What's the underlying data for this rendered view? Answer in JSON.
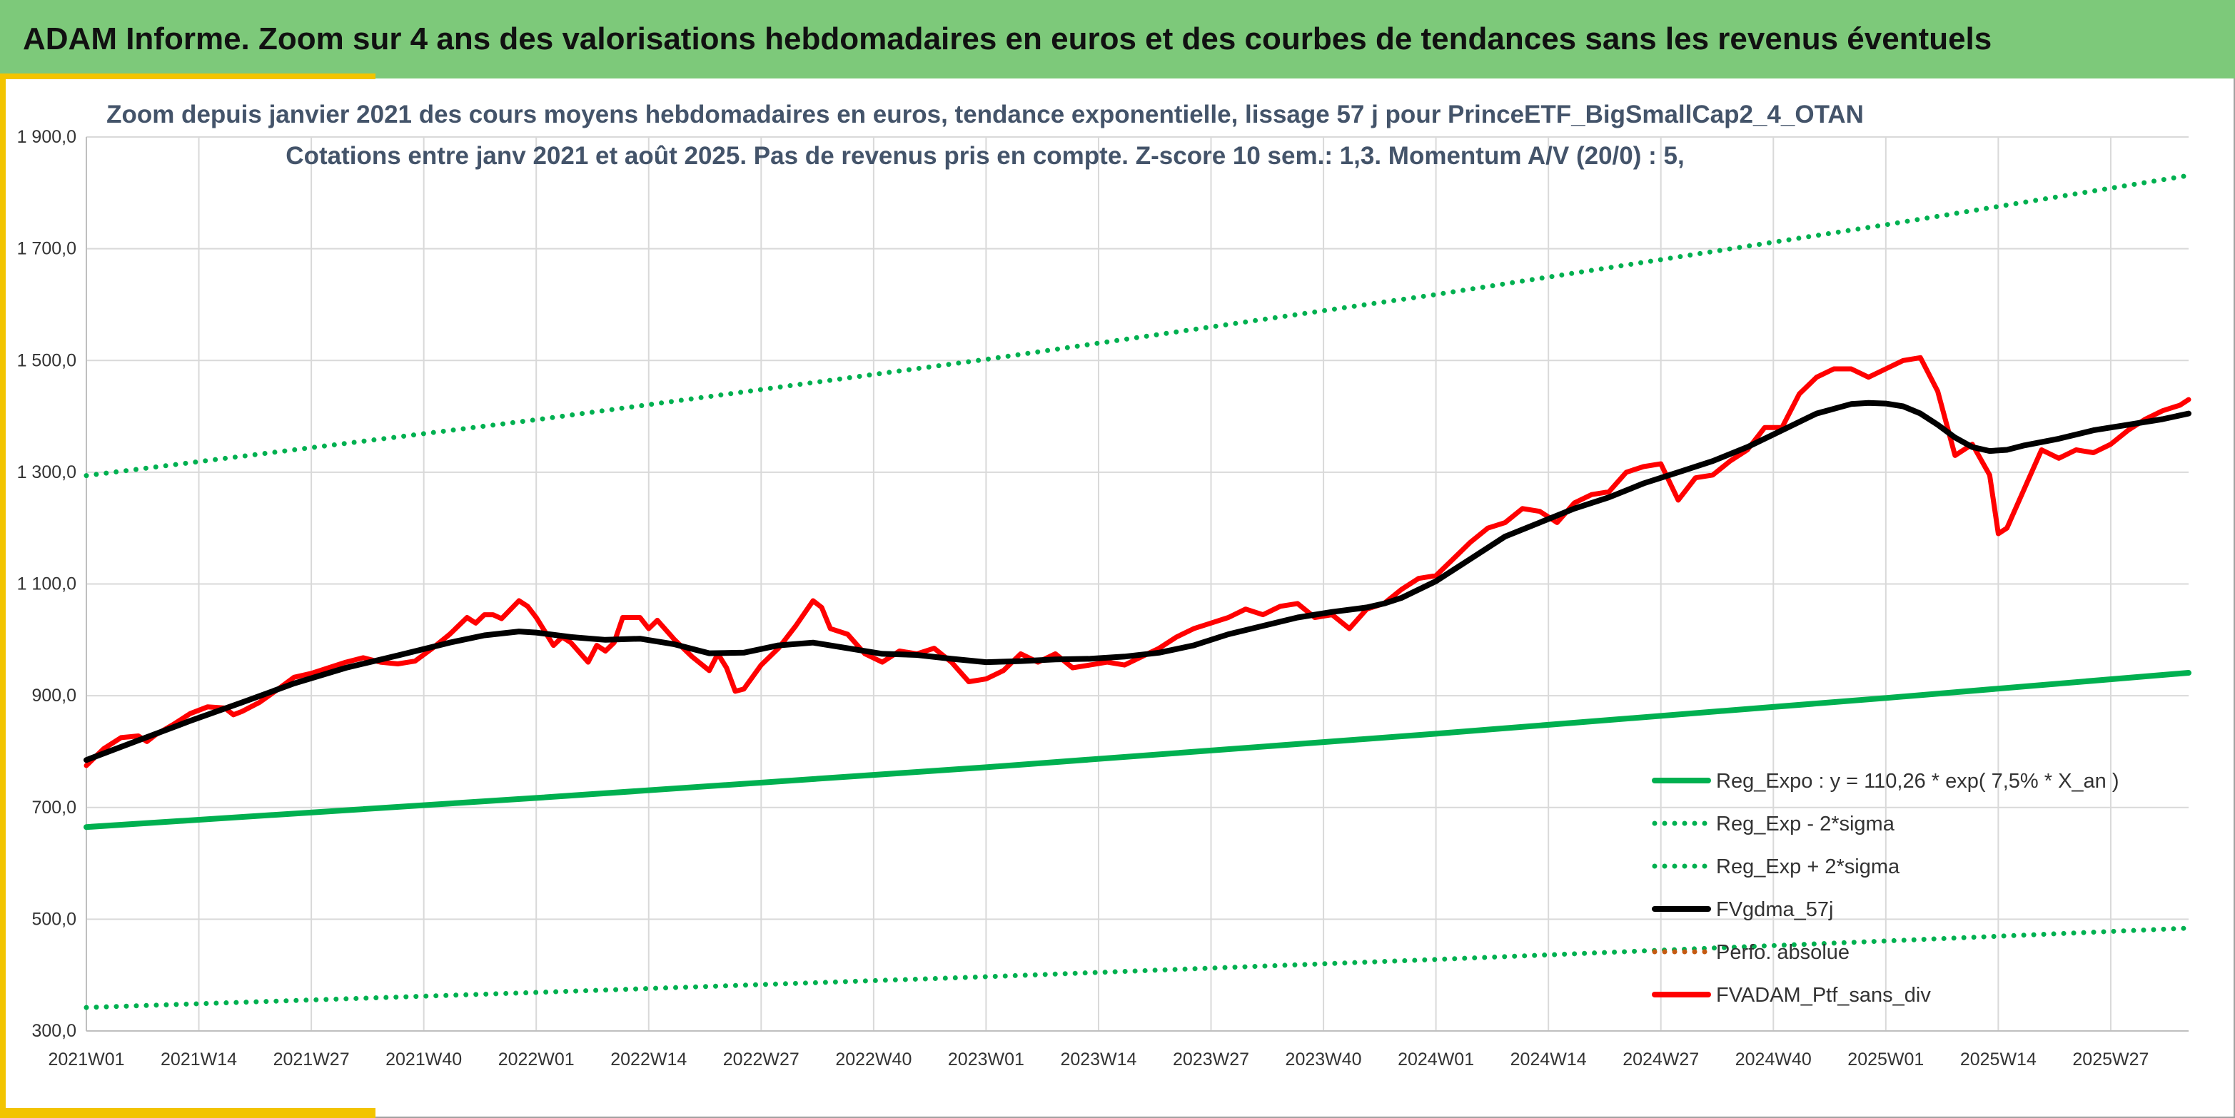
{
  "header": {
    "title": "ADAM Informe. Zoom sur 4 ans des valorisations hebdomadaires en euros et des courbes de tendances sans les revenus éventuels"
  },
  "colors": {
    "banner": "#7dc97a",
    "accent": "#f2c400",
    "trend": "#00b050",
    "smooth": "#000000",
    "price": "#ff0000",
    "perfo": "#c55a11",
    "grid": "#d9d9d9"
  },
  "chart_data": {
    "type": "line",
    "title": "Zoom depuis janvier 2021 des cours moyens hebdomadaires en euros, tendance exponentielle, lissage 57 j pour PrinceETF_BigSmallCap2_4_OTAN",
    "subtitle": "Cotations entre janv 2021 et août 2025. Pas de revenus pris en compte. Z-score 10 sem.: 1,3. Momentum A/V (20/0) : 5,",
    "xlabel": "",
    "ylabel": "",
    "ylim": [
      300,
      1900
    ],
    "yticks": [
      "1 900,0",
      "1 700,0",
      "1 500,0",
      "1 300,0",
      "1 100,0",
      "900,0",
      "700,0",
      "500,0",
      "300,0"
    ],
    "ytick_values": [
      1900,
      1700,
      1500,
      1300,
      1100,
      900,
      700,
      500,
      300
    ],
    "x_range_weeks": [
      0,
      243
    ],
    "xticks": [
      {
        "label": "2021W01",
        "week": 0
      },
      {
        "label": "2021W14",
        "week": 13
      },
      {
        "label": "2021W27",
        "week": 26
      },
      {
        "label": "2021W40",
        "week": 39
      },
      {
        "label": "2022W01",
        "week": 52
      },
      {
        "label": "2022W14",
        "week": 65
      },
      {
        "label": "2022W27",
        "week": 78
      },
      {
        "label": "2022W40",
        "week": 91
      },
      {
        "label": "2023W01",
        "week": 104
      },
      {
        "label": "2023W14",
        "week": 117
      },
      {
        "label": "2023W27",
        "week": 130
      },
      {
        "label": "2023W40",
        "week": 143
      },
      {
        "label": "2024W01",
        "week": 156
      },
      {
        "label": "2024W14",
        "week": 169
      },
      {
        "label": "2024W27",
        "week": 182
      },
      {
        "label": "2024W40",
        "week": 195
      },
      {
        "label": "2025W01",
        "week": 208
      },
      {
        "label": "2025W14",
        "week": 221
      },
      {
        "label": "2025W27",
        "week": 234
      }
    ],
    "grid": true,
    "legend_position": "bottom-right",
    "series": [
      {
        "name": "Reg_Expo : y = 110,26 * exp( 7,5% *  X_an )",
        "style": "solid",
        "color": "#00b050",
        "x": [
          0,
          52,
          104,
          156,
          208,
          243
        ],
        "y": [
          665,
          717,
          772,
          832,
          896,
          941
        ]
      },
      {
        "name": "Reg_Exp - 2*sigma",
        "style": "dotted",
        "color": "#00b050",
        "x": [
          0,
          52,
          104,
          156,
          208,
          243
        ],
        "y": [
          342,
          369,
          397,
          428,
          461,
          484
        ]
      },
      {
        "name": "Reg_Exp + 2*sigma",
        "style": "dotted",
        "color": "#00b050",
        "x": [
          0,
          52,
          104,
          156,
          208,
          243
        ],
        "y": [
          1294,
          1394,
          1502,
          1618,
          1743,
          1831
        ]
      },
      {
        "name": "FVgdma_57j",
        "style": "solid",
        "color": "#000000",
        "x": [
          0,
          6,
          12,
          18,
          24,
          30,
          36,
          42,
          46,
          50,
          52,
          56,
          60,
          64,
          68,
          72,
          76,
          80,
          84,
          88,
          92,
          96,
          100,
          104,
          108,
          112,
          116,
          120,
          124,
          128,
          132,
          136,
          140,
          144,
          148,
          150,
          152,
          156,
          160,
          164,
          168,
          172,
          176,
          180,
          184,
          188,
          192,
          196,
          200,
          204,
          206,
          208,
          210,
          212,
          214,
          216,
          218,
          220,
          222,
          224,
          228,
          232,
          236,
          240,
          243
        ],
        "y": [
          785,
          820,
          855,
          888,
          922,
          950,
          972,
          995,
          1008,
          1015,
          1013,
          1005,
          1000,
          1002,
          992,
          976,
          977,
          990,
          995,
          985,
          975,
          973,
          966,
          960,
          962,
          965,
          966,
          970,
          977,
          990,
          1010,
          1025,
          1040,
          1050,
          1058,
          1065,
          1075,
          1105,
          1145,
          1185,
          1210,
          1235,
          1255,
          1280,
          1300,
          1320,
          1345,
          1375,
          1405,
          1422,
          1424,
          1423,
          1418,
          1405,
          1385,
          1362,
          1345,
          1338,
          1340,
          1348,
          1360,
          1375,
          1385,
          1395,
          1405
        ]
      },
      {
        "name": "Perfo. absolue",
        "style": "dotted",
        "color": "#c55a11",
        "x": [],
        "y": []
      },
      {
        "name": "FVADAM_Ptf_sans_div",
        "style": "solid",
        "color": "#ff0000",
        "x": [
          0,
          2,
          4,
          6,
          7,
          8,
          10,
          12,
          14,
          16,
          17,
          18,
          20,
          22,
          24,
          26,
          28,
          30,
          32,
          34,
          36,
          38,
          40,
          42,
          44,
          45,
          46,
          47,
          48,
          50,
          51,
          52,
          54,
          55,
          56,
          58,
          59,
          60,
          61,
          62,
          64,
          65,
          66,
          68,
          70,
          72,
          73,
          74,
          75,
          76,
          78,
          80,
          82,
          84,
          85,
          86,
          88,
          90,
          92,
          94,
          96,
          98,
          100,
          102,
          104,
          106,
          108,
          110,
          112,
          114,
          116,
          118,
          120,
          122,
          124,
          126,
          128,
          130,
          132,
          134,
          136,
          138,
          140,
          142,
          144,
          146,
          148,
          150,
          152,
          154,
          156,
          158,
          160,
          162,
          164,
          166,
          168,
          170,
          172,
          174,
          176,
          178,
          180,
          182,
          184,
          186,
          188,
          190,
          192,
          194,
          196,
          198,
          200,
          202,
          204,
          206,
          208,
          210,
          212,
          214,
          216,
          218,
          220,
          221,
          222,
          224,
          226,
          228,
          230,
          232,
          234,
          236,
          238,
          240,
          242,
          243
        ],
        "y": [
          775,
          805,
          825,
          828,
          818,
          830,
          848,
          868,
          880,
          878,
          866,
          872,
          888,
          910,
          933,
          940,
          950,
          960,
          968,
          960,
          957,
          962,
          985,
          1010,
          1040,
          1030,
          1045,
          1045,
          1038,
          1070,
          1060,
          1040,
          990,
          1005,
          995,
          960,
          990,
          980,
          995,
          1040,
          1040,
          1020,
          1035,
          1000,
          970,
          945,
          975,
          950,
          908,
          912,
          955,
          985,
          1025,
          1070,
          1058,
          1020,
          1010,
          975,
          960,
          980,
          975,
          985,
          960,
          925,
          930,
          945,
          975,
          960,
          975,
          950,
          955,
          960,
          955,
          970,
          985,
          1005,
          1020,
          1030,
          1040,
          1055,
          1045,
          1060,
          1065,
          1040,
          1045,
          1020,
          1055,
          1065,
          1090,
          1110,
          1115,
          1145,
          1175,
          1200,
          1210,
          1235,
          1230,
          1210,
          1245,
          1260,
          1265,
          1300,
          1310,
          1315,
          1250,
          1290,
          1295,
          1320,
          1340,
          1380,
          1380,
          1440,
          1470,
          1485,
          1485,
          1470,
          1485,
          1500,
          1505,
          1445,
          1330,
          1350,
          1295,
          1190,
          1200,
          1270,
          1340,
          1325,
          1340,
          1335,
          1350,
          1375,
          1395,
          1410,
          1420,
          1430
        ]
      }
    ]
  }
}
